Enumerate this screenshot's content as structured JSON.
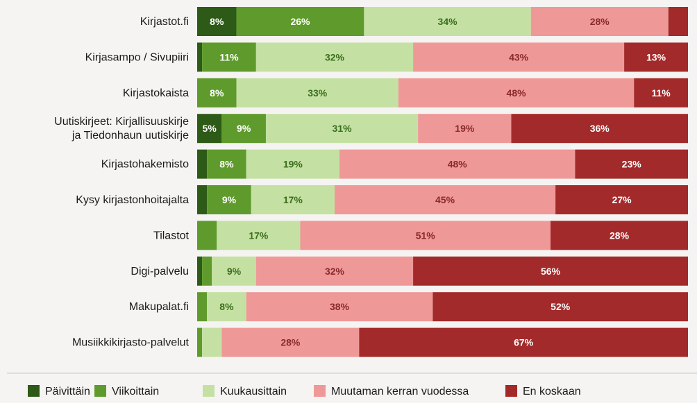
{
  "chart_data": {
    "type": "bar",
    "orientation": "horizontal",
    "stacked": "percent",
    "title": "",
    "xlabel": "",
    "ylabel": "",
    "grid": false,
    "legend_position": "bottom",
    "categories": [
      "Kirjastot.fi",
      "Kirjasampo / Sivupiiri",
      "Kirjastokaista",
      "Uutiskirjeet: Kirjallisuuskirje ja Tiedonhaun uutiskirje",
      "Kirjastohakemisto",
      "Kysy kirjastonhoitajalta",
      "Tilastot",
      "Digi-palvelu",
      "Makupalat.fi",
      "Musiikkikirjasto-palvelut"
    ],
    "category_lines": [
      [
        "Kirjastot.fi"
      ],
      [
        "Kirjasampo / Sivupiiri"
      ],
      [
        "Kirjastokaista"
      ],
      [
        "Uutiskirjeet: Kirjallisuuskirje",
        "ja Tiedonhaun uutiskirje"
      ],
      [
        "Kirjastohakemisto"
      ],
      [
        "Kysy kirjastonhoitajalta"
      ],
      [
        "Tilastot"
      ],
      [
        "Digi-palvelu"
      ],
      [
        "Makupalat.fi"
      ],
      [
        "Musiikkikirjasto-palvelut"
      ]
    ],
    "series": [
      {
        "name": "Päivittäin",
        "color": "#2d5a16",
        "label_color": "#ffffff",
        "values": [
          8,
          1,
          0,
          5,
          2,
          2,
          0,
          1,
          0,
          0
        ]
      },
      {
        "name": "Viikoittain",
        "color": "#5f9b2c",
        "label_color": "#ffffff",
        "values": [
          26,
          11,
          8,
          9,
          8,
          9,
          4,
          2,
          2,
          1
        ]
      },
      {
        "name": "Kuukausittain",
        "color": "#c4e1a3",
        "label_color": "#3a6e1c",
        "values": [
          34,
          32,
          33,
          31,
          19,
          17,
          17,
          9,
          8,
          4
        ]
      },
      {
        "name": "Muutaman kerran vuodessa",
        "color": "#ef9898",
        "label_color": "#8a2a2a",
        "values": [
          28,
          43,
          48,
          19,
          48,
          45,
          51,
          32,
          38,
          28
        ]
      },
      {
        "name": "En koskaan",
        "color": "#a32a2a",
        "label_color": "#ffffff",
        "values": [
          4,
          13,
          11,
          36,
          23,
          27,
          28,
          56,
          52,
          67
        ]
      }
    ],
    "label_threshold": 5,
    "value_suffix": "%"
  }
}
